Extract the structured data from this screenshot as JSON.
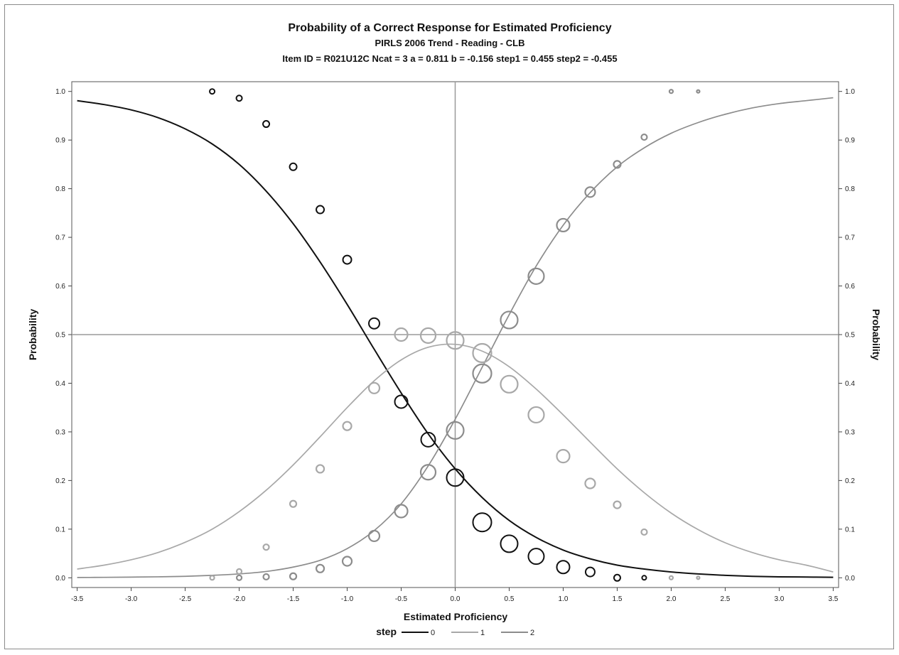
{
  "chart_data": {
    "type": "line",
    "title": "Probability of a Correct Response for Estimated Proficiency",
    "subtitle": "PIRLS 2006 Trend - Reading - CLB",
    "subtitle2": "Item ID = R021U12C  Ncat = 3  a = 0.811  b = -0.156  step1 = 0.455  step2 = -0.455",
    "xlabel": "Estimated Proficiency",
    "ylabel": "Probability",
    "ylabel_right": "Probability",
    "xlim": [
      -3.55,
      3.55
    ],
    "ylim": [
      -0.02,
      1.02
    ],
    "x_ticks": [
      "-3.5",
      "-3.0",
      "-2.5",
      "-2.0",
      "-1.5",
      "-1.0",
      "-0.5",
      "0.0",
      "0.5",
      "1.0",
      "1.5",
      "2.0",
      "2.5",
      "3.0",
      "3.5"
    ],
    "y_ticks": [
      "0.0",
      "0.1",
      "0.2",
      "0.3",
      "0.4",
      "0.5",
      "0.6",
      "0.7",
      "0.8",
      "0.9",
      "1.0"
    ],
    "y_ticks_right": [
      "0.0",
      "0.1",
      "0.2",
      "0.3",
      "0.4",
      "0.5",
      "0.6",
      "0.7",
      "0.8",
      "0.9",
      "1.0"
    ],
    "reference_lines": {
      "x": 0.0,
      "y": 0.5
    },
    "grid": false,
    "legend": {
      "title": "step",
      "placement": "bottom-center",
      "entries": [
        "0",
        "1",
        "2"
      ]
    },
    "curve_x": [
      -3.5,
      -3.25,
      -3.0,
      -2.75,
      -2.5,
      -2.25,
      -2.0,
      -1.75,
      -1.5,
      -1.25,
      -1.0,
      -0.75,
      -0.5,
      -0.25,
      0.0,
      0.25,
      0.5,
      0.75,
      1.0,
      1.25,
      1.5,
      1.75,
      2.0,
      2.25,
      2.5,
      2.75,
      3.0,
      3.25,
      3.5
    ],
    "series": [
      {
        "name": "0",
        "color": "#111111",
        "curve": [
          0.981,
          0.973,
          0.962,
          0.946,
          0.923,
          0.892,
          0.85,
          0.795,
          0.728,
          0.649,
          0.562,
          0.47,
          0.38,
          0.296,
          0.224,
          0.165,
          0.118,
          0.083,
          0.057,
          0.039,
          0.026,
          0.018,
          0.012,
          0.008,
          0.005,
          0.003,
          0.002,
          0.0015,
          0.001
        ],
        "points": [
          {
            "x": -2.25,
            "y": 1.0,
            "r": 3.5
          },
          {
            "x": -2.0,
            "y": 0.986,
            "r": 4
          },
          {
            "x": -1.75,
            "y": 0.933,
            "r": 4.5
          },
          {
            "x": -1.5,
            "y": 0.845,
            "r": 5
          },
          {
            "x": -1.25,
            "y": 0.757,
            "r": 5.5
          },
          {
            "x": -1.0,
            "y": 0.654,
            "r": 6
          },
          {
            "x": -0.75,
            "y": 0.523,
            "r": 7.5
          },
          {
            "x": -0.5,
            "y": 0.362,
            "r": 9
          },
          {
            "x": -0.25,
            "y": 0.284,
            "r": 10
          },
          {
            "x": 0.0,
            "y": 0.206,
            "r": 12
          },
          {
            "x": 0.25,
            "y": 0.114,
            "r": 13
          },
          {
            "x": 0.5,
            "y": 0.07,
            "r": 12
          },
          {
            "x": 0.75,
            "y": 0.044,
            "r": 11
          },
          {
            "x": 1.0,
            "y": 0.022,
            "r": 9
          },
          {
            "x": 1.25,
            "y": 0.012,
            "r": 6.5
          },
          {
            "x": 1.5,
            "y": 0.0,
            "r": 4.5
          },
          {
            "x": 1.75,
            "y": 0.0,
            "r": 3
          }
        ]
      },
      {
        "name": "1",
        "color": "#a8a8a8",
        "curve": [
          0.018,
          0.026,
          0.037,
          0.052,
          0.073,
          0.1,
          0.136,
          0.18,
          0.232,
          0.29,
          0.35,
          0.405,
          0.448,
          0.474,
          0.48,
          0.466,
          0.434,
          0.388,
          0.335,
          0.279,
          0.224,
          0.175,
          0.133,
          0.099,
          0.072,
          0.052,
          0.037,
          0.026,
          0.012
        ],
        "points": [
          {
            "x": -2.25,
            "y": 0.0,
            "r": 3
          },
          {
            "x": -2.0,
            "y": 0.013,
            "r": 3.5
          },
          {
            "x": -1.75,
            "y": 0.063,
            "r": 4
          },
          {
            "x": -1.5,
            "y": 0.152,
            "r": 4.5
          },
          {
            "x": -1.25,
            "y": 0.224,
            "r": 5.5
          },
          {
            "x": -1.0,
            "y": 0.312,
            "r": 6
          },
          {
            "x": -0.75,
            "y": 0.39,
            "r": 7.5
          },
          {
            "x": -0.5,
            "y": 0.5,
            "r": 9
          },
          {
            "x": -0.25,
            "y": 0.498,
            "r": 10.5
          },
          {
            "x": 0.0,
            "y": 0.488,
            "r": 12
          },
          {
            "x": 0.25,
            "y": 0.462,
            "r": 13
          },
          {
            "x": 0.5,
            "y": 0.398,
            "r": 12
          },
          {
            "x": 0.75,
            "y": 0.335,
            "r": 11
          },
          {
            "x": 1.0,
            "y": 0.25,
            "r": 9
          },
          {
            "x": 1.25,
            "y": 0.194,
            "r": 7
          },
          {
            "x": 1.5,
            "y": 0.15,
            "r": 5
          },
          {
            "x": 1.75,
            "y": 0.094,
            "r": 4
          },
          {
            "x": 2.0,
            "y": 0.0,
            "r": 2.5
          },
          {
            "x": 2.25,
            "y": 0.0,
            "r": 2
          }
        ]
      },
      {
        "name": "2",
        "color": "#8c8c8c",
        "curve": [
          0.0006,
          0.0009,
          0.0014,
          0.002,
          0.003,
          0.005,
          0.008,
          0.013,
          0.022,
          0.036,
          0.06,
          0.097,
          0.152,
          0.23,
          0.326,
          0.433,
          0.541,
          0.641,
          0.725,
          0.792,
          0.845,
          0.884,
          0.914,
          0.936,
          0.953,
          0.966,
          0.975,
          0.981,
          0.987
        ],
        "points": [
          {
            "x": -2.0,
            "y": 0.0,
            "r": 3.5
          },
          {
            "x": -1.75,
            "y": 0.002,
            "r": 4
          },
          {
            "x": -1.5,
            "y": 0.003,
            "r": 4.5
          },
          {
            "x": -1.25,
            "y": 0.019,
            "r": 5.5
          },
          {
            "x": -1.0,
            "y": 0.034,
            "r": 6.5
          },
          {
            "x": -0.75,
            "y": 0.086,
            "r": 7.5
          },
          {
            "x": -0.5,
            "y": 0.137,
            "r": 9
          },
          {
            "x": -0.25,
            "y": 0.217,
            "r": 10.5
          },
          {
            "x": 0.0,
            "y": 0.303,
            "r": 12
          },
          {
            "x": 0.25,
            "y": 0.42,
            "r": 13
          },
          {
            "x": 0.5,
            "y": 0.53,
            "r": 12
          },
          {
            "x": 0.75,
            "y": 0.62,
            "r": 11
          },
          {
            "x": 1.0,
            "y": 0.725,
            "r": 9
          },
          {
            "x": 1.25,
            "y": 0.793,
            "r": 7
          },
          {
            "x": 1.5,
            "y": 0.85,
            "r": 5
          },
          {
            "x": 1.75,
            "y": 0.906,
            "r": 4
          },
          {
            "x": 2.0,
            "y": 1.0,
            "r": 2.5
          },
          {
            "x": 2.25,
            "y": 1.0,
            "r": 2
          }
        ]
      }
    ]
  }
}
